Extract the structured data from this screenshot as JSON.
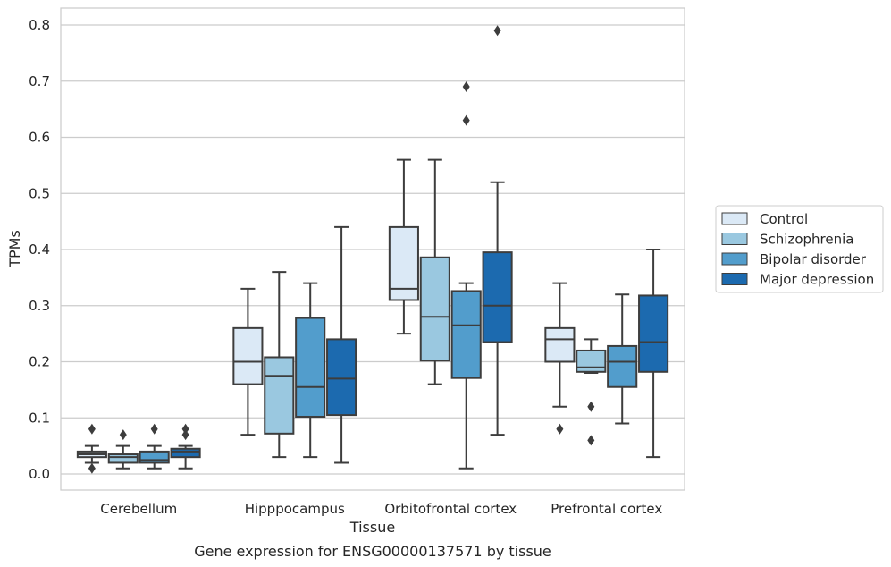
{
  "caption": "Gene expression for ENSG00000137571 by tissue",
  "chart_data": {
    "type": "box",
    "xlabel": "Tissue",
    "ylabel": "TPMs",
    "ylim": [
      -0.027,
      0.832
    ],
    "yticks": [
      "0.0",
      "0.1",
      "0.2",
      "0.3",
      "0.4",
      "0.5",
      "0.6",
      "0.7",
      "0.8"
    ],
    "ytick_values": [
      0.0,
      0.1,
      0.2,
      0.3,
      0.4,
      0.5,
      0.6,
      0.7,
      0.8
    ],
    "grid": "horizontal",
    "legend_position": "right",
    "categories": [
      "Cerebellum",
      "Hipppocampus",
      "Orbitofrontal cortex",
      "Prefrontal cortex"
    ],
    "series": [
      {
        "name": "Control",
        "color": "#dbe9f6",
        "boxes": [
          {
            "whisker_low": 0.02,
            "q1": 0.03,
            "median": 0.035,
            "q3": 0.04,
            "whisker_high": 0.05,
            "outliers": [
              0.08,
              0.01
            ]
          },
          {
            "whisker_low": 0.07,
            "q1": 0.16,
            "median": 0.2,
            "q3": 0.26,
            "whisker_high": 0.33,
            "outliers": []
          },
          {
            "whisker_low": 0.25,
            "q1": 0.31,
            "median": 0.33,
            "q3": 0.44,
            "whisker_high": 0.56,
            "outliers": []
          },
          {
            "whisker_low": 0.12,
            "q1": 0.2,
            "median": 0.24,
            "q3": 0.26,
            "whisker_high": 0.34,
            "outliers": [
              0.08
            ]
          }
        ]
      },
      {
        "name": "Schizophrenia",
        "color": "#9ac8e0",
        "boxes": [
          {
            "whisker_low": 0.01,
            "q1": 0.02,
            "median": 0.03,
            "q3": 0.035,
            "whisker_high": 0.05,
            "outliers": [
              0.07
            ]
          },
          {
            "whisker_low": 0.03,
            "q1": 0.072,
            "median": 0.175,
            "q3": 0.208,
            "whisker_high": 0.36,
            "outliers": []
          },
          {
            "whisker_low": 0.16,
            "q1": 0.202,
            "median": 0.28,
            "q3": 0.386,
            "whisker_high": 0.56,
            "outliers": []
          },
          {
            "whisker_low": 0.18,
            "q1": 0.182,
            "median": 0.19,
            "q3": 0.22,
            "whisker_high": 0.24,
            "outliers": [
              0.12,
              0.06
            ]
          }
        ]
      },
      {
        "name": "Bipolar disorder",
        "color": "#529dcc",
        "boxes": [
          {
            "whisker_low": 0.01,
            "q1": 0.02,
            "median": 0.025,
            "q3": 0.04,
            "whisker_high": 0.05,
            "outliers": [
              0.08
            ]
          },
          {
            "whisker_low": 0.03,
            "q1": 0.102,
            "median": 0.155,
            "q3": 0.278,
            "whisker_high": 0.34,
            "outliers": []
          },
          {
            "whisker_low": 0.01,
            "q1": 0.171,
            "median": 0.265,
            "q3": 0.326,
            "whisker_high": 0.34,
            "outliers": [
              0.69,
              0.63
            ]
          },
          {
            "whisker_low": 0.09,
            "q1": 0.155,
            "median": 0.2,
            "q3": 0.228,
            "whisker_high": 0.32,
            "outliers": []
          }
        ]
      },
      {
        "name": "Major depression",
        "color": "#1c6aaf",
        "boxes": [
          {
            "whisker_low": 0.01,
            "q1": 0.03,
            "median": 0.04,
            "q3": 0.045,
            "whisker_high": 0.05,
            "outliers": [
              0.08,
              0.07
            ]
          },
          {
            "whisker_low": 0.02,
            "q1": 0.105,
            "median": 0.17,
            "q3": 0.24,
            "whisker_high": 0.44,
            "outliers": []
          },
          {
            "whisker_low": 0.07,
            "q1": 0.235,
            "median": 0.3,
            "q3": 0.395,
            "whisker_high": 0.52,
            "outliers": [
              0.79
            ]
          },
          {
            "whisker_low": 0.03,
            "q1": 0.182,
            "median": 0.235,
            "q3": 0.318,
            "whisker_high": 0.4,
            "outliers": []
          }
        ]
      }
    ]
  }
}
